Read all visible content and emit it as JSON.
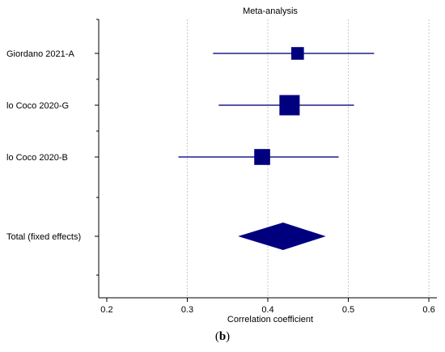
{
  "chart_data": {
    "type": "forest",
    "title": "Meta-analysis",
    "xlabel": "Correlation coefficient",
    "xlim": [
      0.19,
      0.61
    ],
    "xticks": [
      0.2,
      0.3,
      0.4,
      0.5,
      0.6
    ],
    "xtick_labels": [
      "0.2",
      "0.3",
      "0.4",
      "0.5",
      "0.6"
    ],
    "vertical_grid": true,
    "studies": [
      {
        "label": "Giordano 2021-A",
        "estimate": 0.437,
        "lower": 0.332,
        "upper": 0.532,
        "weight": 0.12
      },
      {
        "label": "lo Coco 2020-G",
        "estimate": 0.427,
        "lower": 0.339,
        "upper": 0.507,
        "weight": 0.6
      },
      {
        "label": "lo Coco 2020-B",
        "estimate": 0.393,
        "lower": 0.289,
        "upper": 0.488,
        "weight": 0.28
      }
    ],
    "pooled": {
      "label": "Total (fixed effects)",
      "estimate": 0.419,
      "lower": 0.363,
      "upper": 0.472
    },
    "colors": {
      "marker": "#00007f",
      "ci_line": "#1f1f8f",
      "grid": "#c8c8c8",
      "axis": "#000000"
    }
  },
  "caption": {
    "label": "b"
  }
}
